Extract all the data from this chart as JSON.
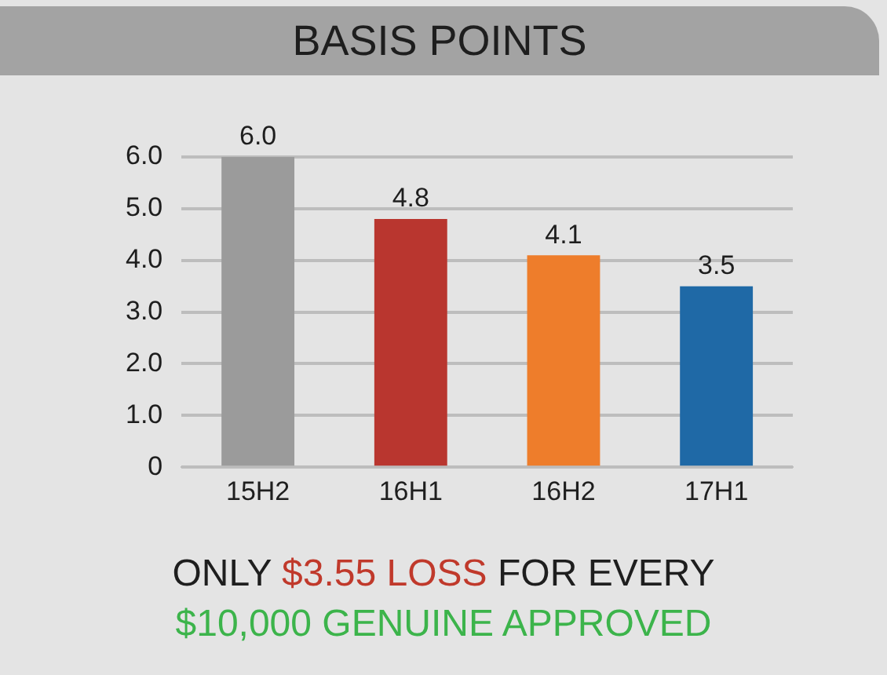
{
  "chart_data": {
    "type": "bar",
    "title": "BASIS POINTS",
    "categories": [
      "15H2",
      "16H1",
      "16H2",
      "17H1"
    ],
    "values": [
      6.0,
      4.8,
      4.1,
      3.5
    ],
    "colors": [
      "#9b9b9b",
      "#b9362f",
      "#ee7d2b",
      "#1f69a6"
    ],
    "value_labels": [
      "6.0",
      "4.8",
      "4.1",
      "3.5"
    ],
    "ylim": [
      0,
      6
    ],
    "yticks": [
      0,
      {
        "value": 1,
        "label": "1.0"
      },
      {
        "value": 2,
        "label": "2.0"
      },
      {
        "value": 3,
        "label": "3.0"
      },
      {
        "value": 4,
        "label": "4.0"
      },
      {
        "value": 5,
        "label": "5.0"
      },
      {
        "value": 6,
        "label": "6.0"
      }
    ],
    "grid": "y",
    "annotations": [
      "ONLY",
      "$3.55 LOSS",
      "FOR EVERY",
      "$10,000 GENUINE APPROVED"
    ]
  }
}
